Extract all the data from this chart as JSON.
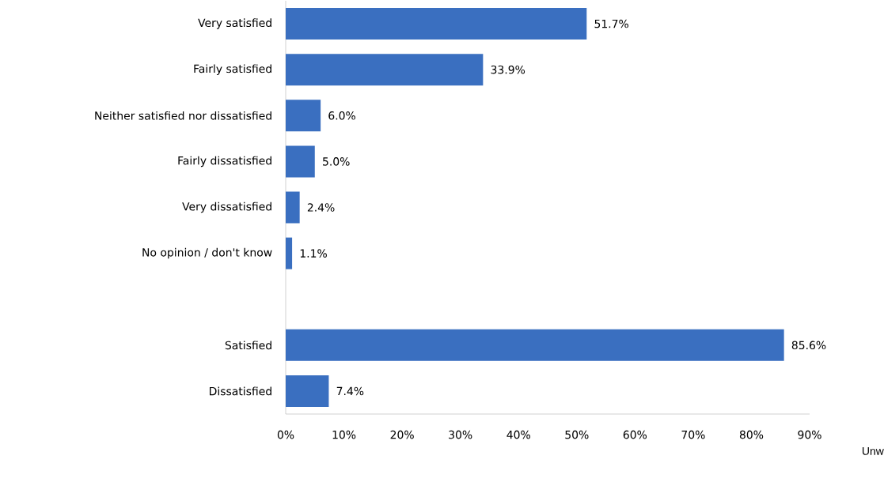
{
  "chart_data": {
    "type": "bar",
    "orientation": "horizontal",
    "categories": [
      "Very satisfied",
      "Fairly satisfied",
      "Neither satisfied nor dissatisfied",
      "Fairly dissatisfied",
      "Very dissatisfied",
      "No opinion / don't know",
      null,
      "Satisfied",
      "Dissatisfied"
    ],
    "values": [
      51.7,
      33.9,
      6.0,
      5.0,
      2.4,
      1.1,
      null,
      85.6,
      7.4
    ],
    "value_labels": [
      "51.7%",
      "33.9%",
      "6.0%",
      "5.0%",
      "2.4%",
      "1.1%",
      null,
      "85.6%",
      "7.4%"
    ],
    "color": "#3a6fc0",
    "xlim": [
      0,
      90
    ],
    "xticks": [
      {
        "value": 0,
        "label": "0%"
      },
      {
        "value": 10,
        "label": "10%"
      },
      {
        "value": 20,
        "label": "20%"
      },
      {
        "value": 30,
        "label": "30%"
      },
      {
        "value": 40,
        "label": "40%"
      },
      {
        "value": 50,
        "label": "50%"
      },
      {
        "value": 60,
        "label": "60%"
      },
      {
        "value": 70,
        "label": "70%"
      },
      {
        "value": 80,
        "label": "80%"
      },
      {
        "value": 90,
        "label": "90%"
      }
    ],
    "grid": false,
    "annotations": [
      "Unw"
    ]
  }
}
